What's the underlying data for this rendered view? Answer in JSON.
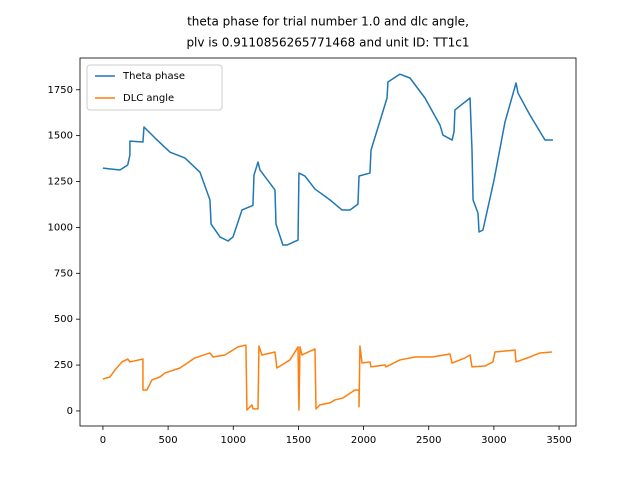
{
  "chart_data": {
    "type": "line",
    "title": [
      "theta phase for trial number 1.0 and dlc angle,",
      "plv is 0.9110856265771468 and unit ID: TT1c1"
    ],
    "xlim": [
      -176,
      3630
    ],
    "ylim": [
      -82,
      1923
    ],
    "xticks": [
      0,
      500,
      1000,
      1500,
      2000,
      2500,
      3000,
      3500
    ],
    "yticks": [
      0,
      250,
      500,
      750,
      1000,
      1250,
      1500,
      1750
    ],
    "grid": false,
    "legend": "upper left",
    "series": [
      {
        "name": "Theta phase",
        "color": "#1f77b4",
        "x": [
          0,
          130,
          190,
          207,
          207,
          307,
          315,
          400,
          515,
          630,
          745,
          821,
          830,
          898,
          960,
          998,
          1067,
          1151,
          1159,
          1190,
          1205,
          1320,
          1328,
          1381,
          1412,
          1497,
          1504,
          1550,
          1627,
          1742,
          1834,
          1896,
          1957,
          1965,
          2049,
          2057,
          2180,
          2187,
          2279,
          2356,
          2471,
          2586,
          2609,
          2679,
          2694,
          2701,
          2817,
          2832,
          2840,
          2878,
          2886,
          2916,
          3001,
          3085,
          3170,
          3185,
          3277,
          3392,
          3453
        ],
        "values": [
          1323,
          1313,
          1340,
          1395,
          1470,
          1465,
          1547,
          1487,
          1410,
          1378,
          1300,
          1150,
          1018,
          948,
          926,
          948,
          1095,
          1120,
          1285,
          1356,
          1313,
          1204,
          1018,
          904,
          904,
          931,
          1296,
          1280,
          1209,
          1150,
          1095,
          1095,
          1127,
          1280,
          1296,
          1421,
          1705,
          1792,
          1835,
          1814,
          1705,
          1558,
          1503,
          1476,
          1520,
          1640,
          1705,
          1421,
          1150,
          1078,
          975,
          986,
          1258,
          1574,
          1787,
          1732,
          1612,
          1476,
          1476
        ]
      },
      {
        "name": "DLC angle",
        "color": "#ff7f0e",
        "x": [
          0,
          54,
          92,
          146,
          190,
          207,
          307,
          307,
          337,
          376,
          437,
          476,
          591,
          706,
          821,
          844,
          936,
          1036,
          1097,
          1105,
          1143,
          1151,
          1190,
          1197,
          1220,
          1320,
          1335,
          1435,
          1497,
          1504,
          1512,
          1527,
          1627,
          1635,
          1665,
          1742,
          1780,
          1842,
          1934,
          1965,
          1965,
          1972,
          1988,
          2049,
          2057,
          2164,
          2172,
          2279,
          2394,
          2525,
          2663,
          2679,
          2778,
          2817,
          2832,
          2932,
          2993,
          3008,
          3162,
          3170,
          3277,
          3354,
          3446
        ],
        "values": [
          174,
          185,
          223,
          267,
          283,
          267,
          283,
          114,
          114,
          169,
          185,
          207,
          234,
          289,
          316,
          294,
          305,
          349,
          359,
          5,
          33,
          11,
          11,
          354,
          305,
          321,
          234,
          278,
          349,
          5,
          349,
          305,
          338,
          11,
          33,
          44,
          60,
          71,
          114,
          114,
          22,
          354,
          261,
          267,
          240,
          251,
          240,
          278,
          294,
          294,
          310,
          261,
          289,
          305,
          240,
          245,
          267,
          321,
          332,
          267,
          294,
          316,
          321
        ]
      }
    ]
  }
}
